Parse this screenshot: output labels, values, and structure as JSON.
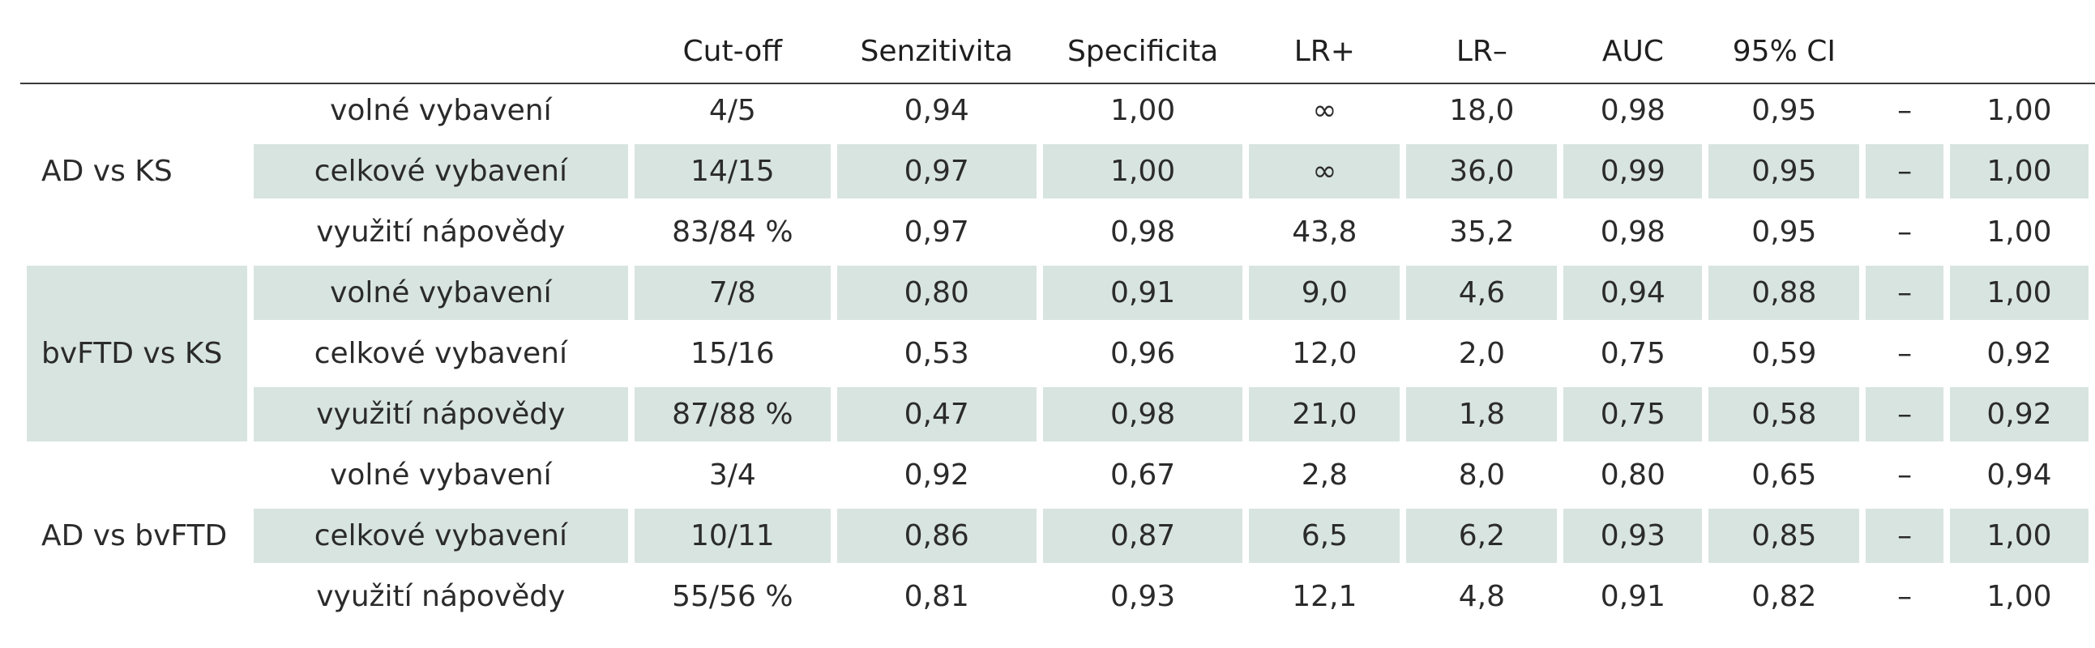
{
  "headers": [
    "",
    "",
    "Cut-off",
    "Senzitivita",
    "Specificita",
    "LR+",
    "LR–",
    "AUC",
    "95% CI",
    "",
    ""
  ],
  "groups": [
    {
      "label": "AD vs KS",
      "shaded": false,
      "rows": [
        {
          "name": "volné vybavení",
          "cutoff": "4/5",
          "sens": "0,94",
          "spec": "1,00",
          "lrp": "∞",
          "lrm": "18,0",
          "auc": "0,98",
          "ci_lo": "0,95",
          "dash": "–",
          "ci_hi": "1,00",
          "shaded": false
        },
        {
          "name": "celkové vybavení",
          "cutoff": "14/15",
          "sens": "0,97",
          "spec": "1,00",
          "lrp": "∞",
          "lrm": "36,0",
          "auc": "0,99",
          "ci_lo": "0,95",
          "dash": "–",
          "ci_hi": "1,00",
          "shaded": true
        },
        {
          "name": "využití nápovědy",
          "cutoff": "83/84 %",
          "sens": "0,97",
          "spec": "0,98",
          "lrp": "43,8",
          "lrm": "35,2",
          "auc": "0,98",
          "ci_lo": "0,95",
          "dash": "–",
          "ci_hi": "1,00",
          "shaded": false
        }
      ]
    },
    {
      "label": "bvFTD vs KS",
      "shaded": true,
      "rows": [
        {
          "name": "volné vybavení",
          "cutoff": "7/8",
          "sens": "0,80",
          "spec": "0,91",
          "lrp": "9,0",
          "lrm": "4,6",
          "auc": "0,94",
          "ci_lo": "0,88",
          "dash": "–",
          "ci_hi": "1,00",
          "shaded": true
        },
        {
          "name": "celkové vybavení",
          "cutoff": "15/16",
          "sens": "0,53",
          "spec": "0,96",
          "lrp": "12,0",
          "lrm": "2,0",
          "auc": "0,75",
          "ci_lo": "0,59",
          "dash": "–",
          "ci_hi": "0,92",
          "shaded": false
        },
        {
          "name": "využití nápovědy",
          "cutoff": "87/88 %",
          "sens": "0,47",
          "spec": "0,98",
          "lrp": "21,0",
          "lrm": "1,8",
          "auc": "0,75",
          "ci_lo": "0,58",
          "dash": "–",
          "ci_hi": "0,92",
          "shaded": true
        }
      ]
    },
    {
      "label": "AD vs bvFTD",
      "shaded": false,
      "rows": [
        {
          "name": "volné vybavení",
          "cutoff": "3/4",
          "sens": "0,92",
          "spec": "0,67",
          "lrp": "2,8",
          "lrm": "8,0",
          "auc": "0,80",
          "ci_lo": "0,65",
          "dash": "–",
          "ci_hi": "0,94",
          "shaded": false
        },
        {
          "name": "celkové vybavení",
          "cutoff": "10/11",
          "sens": "0,86",
          "spec": "0,87",
          "lrp": "6,5",
          "lrm": "6,2",
          "auc": "0,93",
          "ci_lo": "0,85",
          "dash": "–",
          "ci_hi": "1,00",
          "shaded": true
        },
        {
          "name": "využití nápovědy",
          "cutoff": "55/56 %",
          "sens": "0,81",
          "spec": "0,93",
          "lrp": "12,1",
          "lrm": "4,8",
          "auc": "0,91",
          "ci_lo": "0,82",
          "dash": "–",
          "ci_hi": "1,00",
          "shaded": false
        }
      ]
    }
  ]
}
